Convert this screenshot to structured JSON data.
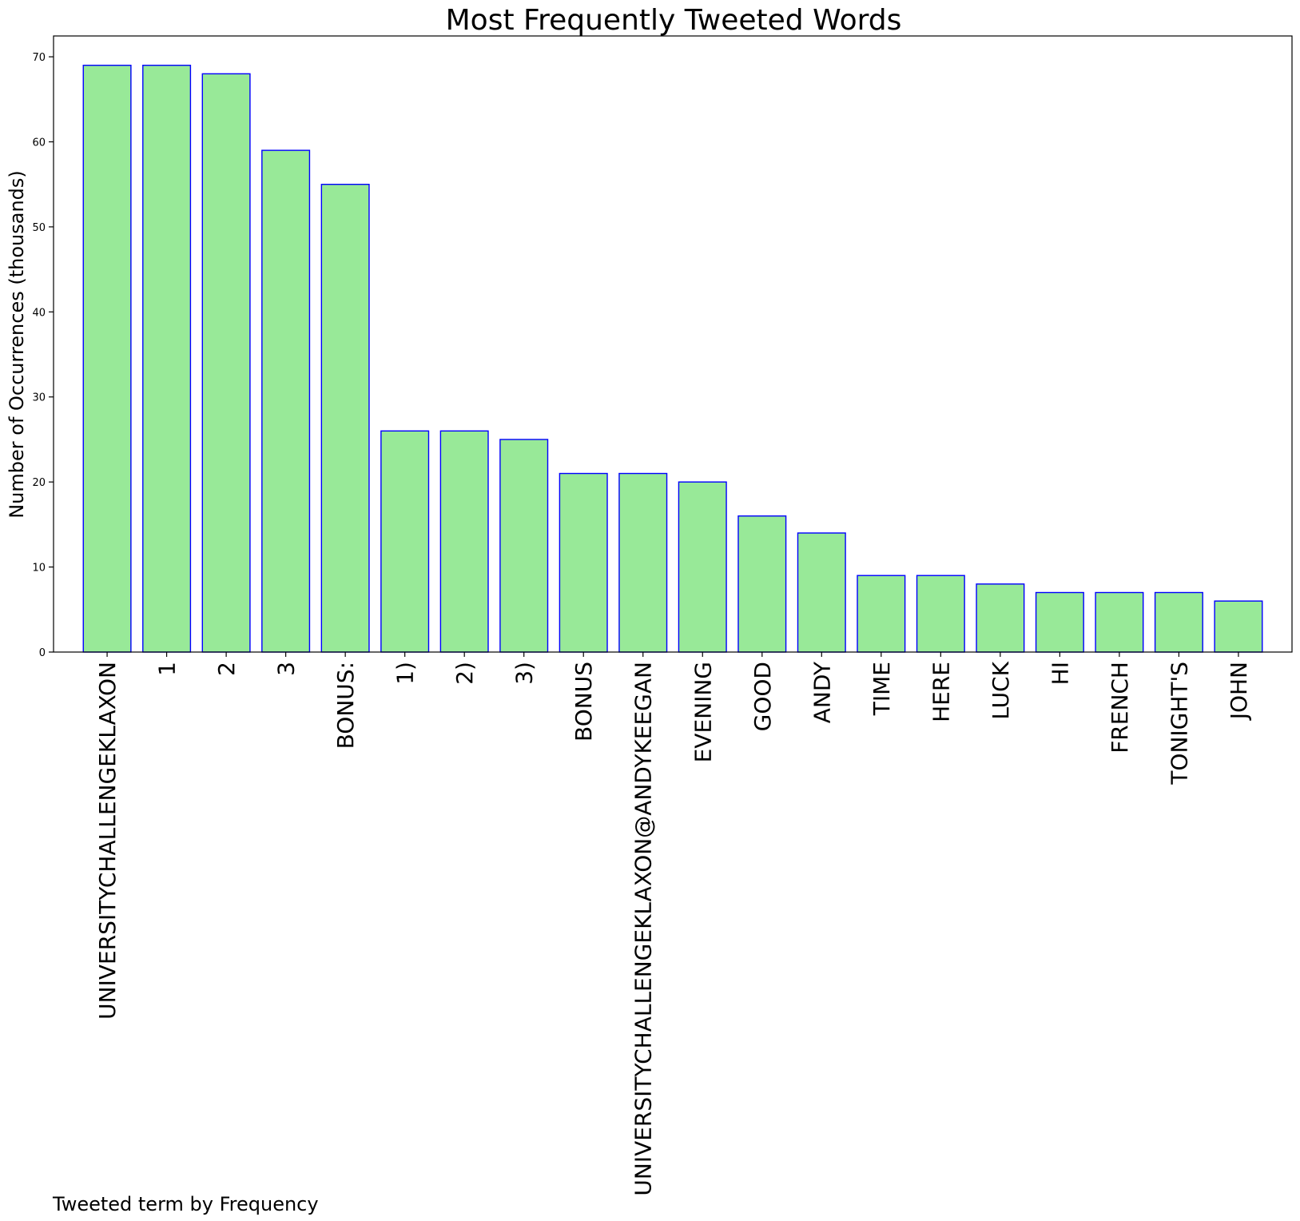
{
  "chart_data": {
    "type": "bar",
    "title": "Most Frequently Tweeted Words",
    "xlabel": "",
    "ylabel": "Number of Occurrences (thousands)",
    "caption": "Tweeted term by Frequency",
    "categories": [
      "UNIVERSITYCHALLENGEKLAXON",
      "1",
      "2",
      "3",
      "BONUS:",
      "1)",
      "2)",
      "3)",
      "BONUS",
      "UNIVERSITYCHALLENGEKLAXON@ANDYKEEGAN",
      "EVENING",
      "GOOD",
      "ANDY",
      "TIME",
      "HERE",
      "LUCK",
      "HI",
      "FRENCH",
      "TONIGHT'S",
      "JOHN"
    ],
    "values": [
      69,
      69,
      68,
      59,
      55,
      26,
      26,
      25,
      21,
      21,
      20,
      16,
      14,
      9,
      9,
      8,
      7,
      7,
      7,
      6
    ],
    "ylim": [
      0,
      72.45
    ],
    "yticks": [
      0,
      10,
      20,
      30,
      40,
      50,
      60,
      70
    ],
    "grid": false,
    "legend": "none",
    "colors": {
      "bar_fill": "#98e998",
      "bar_edge": "#0000ff",
      "axis": "#000000"
    }
  }
}
